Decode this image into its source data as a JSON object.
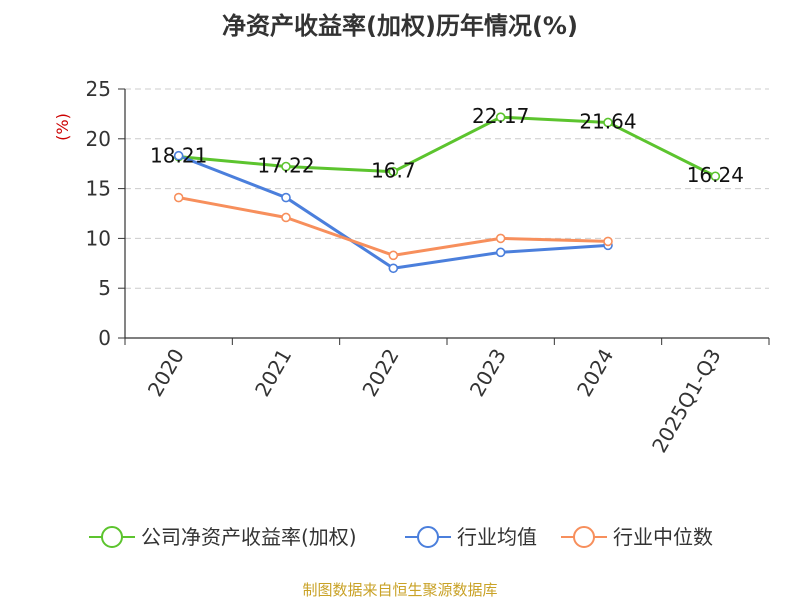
{
  "chart_data": {
    "type": "line",
    "title": "净资产收益率(加权)历年情况(%)",
    "ylabel": "(%)",
    "xlabel": "",
    "categories": [
      "2020",
      "2021",
      "2022",
      "2023",
      "2024",
      "2025Q1-Q3"
    ],
    "ylim": [
      0,
      25
    ],
    "yticks": [
      0,
      5,
      10,
      15,
      20,
      25
    ],
    "grid": true,
    "series": [
      {
        "name": "公司净资产收益率(加权)",
        "color": "#5cc42e",
        "values": [
          18.21,
          17.22,
          16.7,
          22.17,
          21.64,
          16.24
        ],
        "labels": true
      },
      {
        "name": "行业均值",
        "color": "#4b7fdc",
        "values": [
          18.3,
          14.1,
          7.0,
          8.6,
          9.3,
          null
        ],
        "labels": false
      },
      {
        "name": "行业中位数",
        "color": "#f78f5c",
        "values": [
          14.1,
          12.1,
          8.3,
          10.0,
          9.7,
          null
        ],
        "labels": false
      }
    ],
    "legend_position": "bottom",
    "source": "制图数据来自恒生聚源数据库",
    "source_color": "#c9a227",
    "ylabel_color": "#cc0000"
  }
}
